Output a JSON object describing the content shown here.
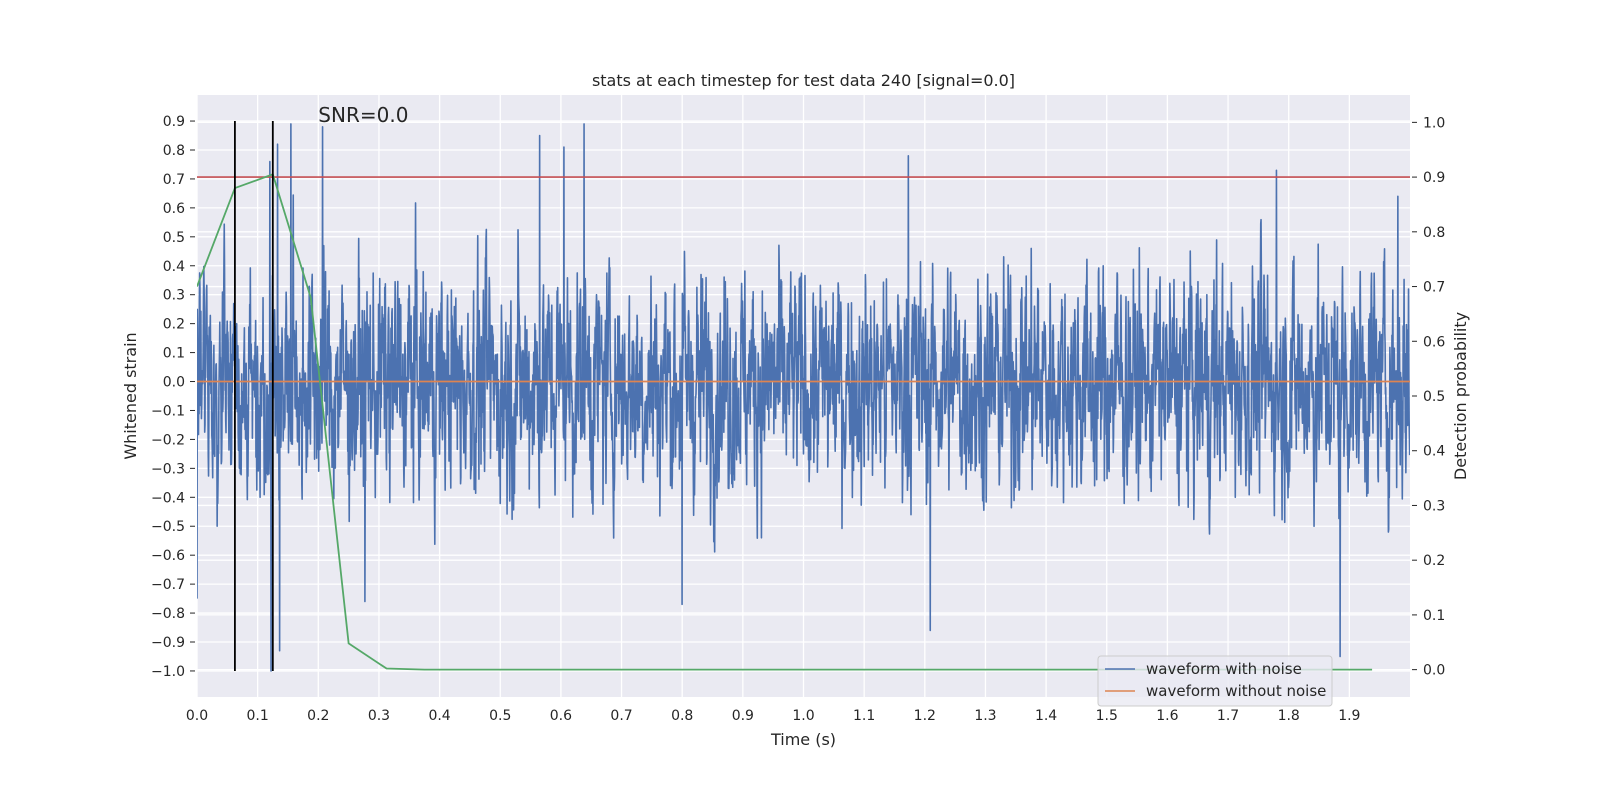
{
  "chart_data": {
    "type": "line",
    "title": "stats at each timestep for test data 240 [signal=0.0]",
    "xlabel": "Time (s)",
    "ylabel": "Whitened strain",
    "y2label": "Detection probability",
    "xlim": [
      0.0,
      2.0
    ],
    "ylim": [
      -1.09,
      0.99
    ],
    "y2lim": [
      -0.05,
      1.05
    ],
    "x_ticks": [
      "0.0",
      "0.1",
      "0.2",
      "0.3",
      "0.4",
      "0.5",
      "0.6",
      "0.7",
      "0.8",
      "0.9",
      "1.0",
      "1.1",
      "1.2",
      "1.3",
      "1.4",
      "1.5",
      "1.6",
      "1.7",
      "1.8",
      "1.9"
    ],
    "y_ticks": [
      "0.9",
      "0.8",
      "0.7",
      "0.6",
      "0.5",
      "0.4",
      "0.3",
      "0.2",
      "0.1",
      "0.0",
      "−0.1",
      "−0.2",
      "−0.3",
      "−0.4",
      "−0.5",
      "−0.6",
      "−0.7",
      "−0.8",
      "−0.9",
      "−1.0"
    ],
    "y2_ticks": [
      "1.0",
      "0.9",
      "0.8",
      "0.7",
      "0.6",
      "0.5",
      "0.4",
      "0.3",
      "0.2",
      "0.1",
      "0.0"
    ],
    "grid": true,
    "legend_position": "lower-right",
    "annotation": "SNR=0.0",
    "threshold_line": {
      "axis": "right",
      "value": 0.9,
      "color": "#c44e52"
    },
    "vertical_markers": {
      "x": [
        0.0625,
        0.125
      ],
      "color": "#000000"
    },
    "series": [
      {
        "name": "waveform with noise",
        "axis": "left",
        "color": "#4c72b0",
        "sampling": {
          "t_start": 0.0,
          "t_end": 2.0,
          "samples": 4096
        },
        "noise_amplitude_typical": 0.3,
        "peaks": [
          {
            "x": 0.0,
            "y": -0.75
          },
          {
            "x": 0.12,
            "y": 0.76
          },
          {
            "x": 0.122,
            "y": -1.0
          },
          {
            "x": 0.133,
            "y": 0.82
          },
          {
            "x": 0.136,
            "y": -0.93
          },
          {
            "x": 0.155,
            "y": 0.89
          },
          {
            "x": 0.207,
            "y": 0.88
          },
          {
            "x": 0.277,
            "y": -0.76
          },
          {
            "x": 0.565,
            "y": 0.85
          },
          {
            "x": 0.605,
            "y": 0.81
          },
          {
            "x": 0.638,
            "y": 0.89
          },
          {
            "x": 0.8,
            "y": -0.77
          },
          {
            "x": 1.173,
            "y": 0.78
          },
          {
            "x": 1.209,
            "y": -0.86
          },
          {
            "x": 1.78,
            "y": 0.73
          },
          {
            "x": 1.885,
            "y": -0.95
          },
          {
            "x": 1.98,
            "y": 0.64
          }
        ]
      },
      {
        "name": "waveform without noise",
        "axis": "left",
        "color": "#dd8452",
        "x": [
          0.0,
          2.0
        ],
        "y": [
          0.0,
          0.0
        ]
      },
      {
        "axis": "right",
        "color": "#55a868",
        "x": [
          0.0,
          0.0625,
          0.125,
          0.1875,
          0.25,
          0.3125,
          0.375,
          0.4375,
          0.5,
          0.5625,
          0.625,
          0.6875,
          0.75,
          0.8125,
          0.875,
          0.9375,
          1.0,
          1.0625,
          1.125,
          1.1875,
          1.25,
          1.3125,
          1.375,
          1.4375,
          1.5,
          1.5625,
          1.625,
          1.6875,
          1.75,
          1.8125,
          1.875,
          1.9375
        ],
        "y": [
          0.7,
          0.88,
          0.905,
          0.68,
          0.048,
          0.002,
          0.0,
          0.0,
          0.0,
          0.0,
          0.0,
          0.0,
          0.0,
          0.0,
          0.0,
          0.0,
          0.0,
          0.0,
          0.0,
          0.0,
          0.0,
          0.0,
          0.0,
          0.0,
          0.0,
          0.0,
          0.0,
          0.0,
          0.0,
          0.0,
          0.0,
          0.0
        ]
      }
    ]
  }
}
